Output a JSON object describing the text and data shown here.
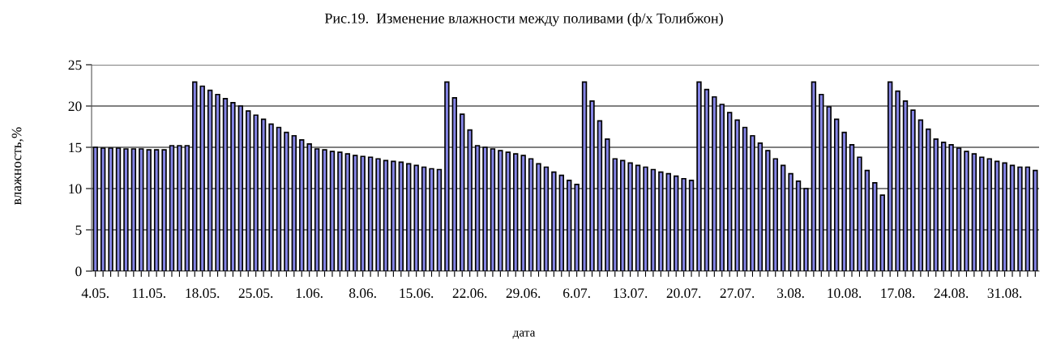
{
  "chart_data": {
    "type": "bar",
    "title": "Рис.19.  Изменение влажности между поливами (ф/х Толибжон)",
    "xlabel": "дата",
    "ylabel": "влажность,%",
    "categories": [
      "4.05.",
      null,
      null,
      null,
      null,
      null,
      null,
      "11.05.",
      null,
      null,
      null,
      null,
      null,
      null,
      "18.05.",
      null,
      null,
      null,
      null,
      null,
      null,
      "25.05.",
      null,
      null,
      null,
      null,
      null,
      null,
      "1.06.",
      null,
      null,
      null,
      null,
      null,
      null,
      "8.06.",
      null,
      null,
      null,
      null,
      null,
      null,
      "15.06.",
      null,
      null,
      null,
      null,
      null,
      null,
      "22.06.",
      null,
      null,
      null,
      null,
      null,
      null,
      "29.06.",
      null,
      null,
      null,
      null,
      null,
      null,
      "6.07.",
      null,
      null,
      null,
      null,
      null,
      null,
      "13.07.",
      null,
      null,
      null,
      null,
      null,
      null,
      "20.07.",
      null,
      null,
      null,
      null,
      null,
      null,
      "27.07.",
      null,
      null,
      null,
      null,
      null,
      null,
      "3.08.",
      null,
      null,
      null,
      null,
      null,
      null,
      "10.08.",
      null,
      null,
      null,
      null,
      null,
      null,
      "17.08.",
      null,
      null,
      null,
      null,
      null,
      null,
      "24.08.",
      null,
      null,
      null,
      null,
      null,
      null,
      "31.08.",
      null,
      null,
      null,
      null
    ],
    "values": [
      15.0,
      14.9,
      14.9,
      14.9,
      14.8,
      14.8,
      14.8,
      14.7,
      14.7,
      14.7,
      15.2,
      15.2,
      15.2,
      22.9,
      22.4,
      21.9,
      21.4,
      20.9,
      20.4,
      20.0,
      19.4,
      18.9,
      18.4,
      17.8,
      17.4,
      16.8,
      16.4,
      15.9,
      15.4,
      14.8,
      14.7,
      14.5,
      14.4,
      14.2,
      14.0,
      13.9,
      13.8,
      13.6,
      13.4,
      13.3,
      13.2,
      13.0,
      12.8,
      12.6,
      12.4,
      12.3,
      22.9,
      21.0,
      19.0,
      17.1,
      15.2,
      15.0,
      14.8,
      14.6,
      14.4,
      14.2,
      14.0,
      13.6,
      13.0,
      12.6,
      12.0,
      11.6,
      11.0,
      10.5,
      22.9,
      20.6,
      18.2,
      16.0,
      13.6,
      13.4,
      13.1,
      12.8,
      12.6,
      12.3,
      12.0,
      11.8,
      11.5,
      11.2,
      11.0,
      22.9,
      22.0,
      21.1,
      20.2,
      19.2,
      18.3,
      17.4,
      16.4,
      15.5,
      14.6,
      13.6,
      12.8,
      11.8,
      10.9,
      10.0,
      22.9,
      21.4,
      19.9,
      18.4,
      16.8,
      15.3,
      13.8,
      12.2,
      10.7,
      9.2,
      22.9,
      21.8,
      20.6,
      19.5,
      18.3,
      17.2,
      16.0,
      15.6,
      15.3,
      14.9,
      14.5,
      14.2,
      13.8,
      13.6,
      13.3,
      13.1,
      12.8,
      12.6,
      12.6,
      12.2
    ],
    "color": "#8585e6",
    "ylim": [
      0,
      25
    ],
    "yticks": [
      0,
      5,
      10,
      15,
      20,
      25
    ],
    "grid": "y",
    "legend": false
  }
}
